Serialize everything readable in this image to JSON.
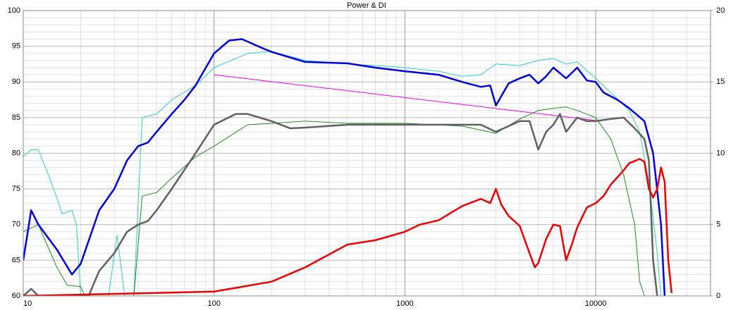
{
  "chart_data": {
    "type": "line",
    "title": "Power & DI",
    "xscale": "log",
    "xlim": [
      10,
      40000
    ],
    "xticks": [
      10,
      100,
      1000,
      10000
    ],
    "ylim": [
      60,
      100
    ],
    "yticks": [
      60,
      65,
      70,
      75,
      80,
      85,
      90,
      95,
      100
    ],
    "y2lim": [
      0,
      20
    ],
    "y2ticks": [
      0,
      5,
      10,
      15,
      20
    ],
    "grid": true,
    "series": [
      {
        "color": "#33cccc",
        "width": 1,
        "x": [
          10,
          11,
          12,
          14,
          16,
          18,
          19,
          20,
          28,
          31,
          34,
          38,
          42,
          50,
          60,
          80,
          100,
          150,
          200,
          300,
          500,
          700,
          1000,
          1500,
          2000,
          2500,
          3000,
          4000,
          5000,
          6000,
          7000,
          8000,
          10000,
          12000,
          15000,
          17000,
          19000,
          21000,
          22000
        ],
        "values": [
          79.5,
          80.5,
          80.5,
          76,
          71.5,
          72,
          70,
          60,
          60,
          68.5,
          60,
          60,
          85,
          85.5,
          87.5,
          89.5,
          92,
          94,
          94.3,
          93,
          92.5,
          92.3,
          92,
          91.5,
          90.8,
          91,
          92.5,
          92.3,
          93,
          93.3,
          92.5,
          92.8,
          90.5,
          88.5,
          86,
          83,
          76,
          66,
          60
        ]
      },
      {
        "color": "#228b22",
        "width": 1,
        "x": [
          10,
          12,
          15,
          17,
          20,
          21,
          38,
          42,
          50,
          60,
          80,
          100,
          150,
          200,
          300,
          500,
          1000,
          2000,
          3000,
          4000,
          5000,
          6000,
          7000,
          8000,
          10000,
          12000,
          14000,
          16000,
          17000,
          18000
        ],
        "values": [
          69,
          70,
          64,
          61.5,
          61.3,
          60,
          60,
          74,
          74.5,
          76.5,
          79.5,
          81,
          84,
          84.2,
          84.5,
          84.2,
          84.2,
          83.8,
          82.8,
          84.8,
          86,
          86.3,
          86.5,
          86,
          85,
          82,
          77,
          70,
          62,
          60
        ]
      },
      {
        "color": "#ee00ee",
        "width": 1,
        "x": [
          100,
          10000
        ],
        "values": [
          91,
          84.6
        ]
      },
      {
        "color": "#606060",
        "width": 2.5,
        "x": [
          10,
          11,
          12,
          22,
          25,
          30,
          35,
          40,
          45,
          50,
          60,
          80,
          100,
          130,
          150,
          200,
          250,
          300,
          500,
          700,
          1000,
          2000,
          2500,
          3000,
          4000,
          4500,
          5000,
          5500,
          6000,
          6500,
          7000,
          8000,
          9000,
          10000,
          12000,
          14000,
          16000,
          18000,
          19000,
          20000,
          21000
        ],
        "values": [
          60,
          61,
          60,
          60,
          63.5,
          66,
          69,
          70,
          70.5,
          72,
          75,
          80,
          84,
          85.5,
          85.5,
          84.5,
          83.5,
          83.6,
          84,
          84,
          84,
          84,
          84,
          83,
          84.5,
          84.5,
          80.5,
          83,
          84,
          85.5,
          83,
          85,
          84.5,
          84.5,
          84.8,
          85,
          83.5,
          82,
          79,
          65,
          60
        ]
      },
      {
        "color": "#0000dd",
        "width": 2.5,
        "x": [
          10,
          11,
          12,
          15,
          18,
          20,
          25,
          30,
          35,
          40,
          45,
          50,
          60,
          70,
          80,
          100,
          120,
          140,
          170,
          200,
          300,
          500,
          700,
          1000,
          1500,
          2000,
          2500,
          2800,
          3000,
          3500,
          4000,
          4500,
          5000,
          5500,
          6000,
          7000,
          8000,
          9000,
          10000,
          11000,
          13000,
          15000,
          18000,
          20000,
          22000,
          23000
        ],
        "values": [
          65,
          72,
          70,
          66.5,
          63,
          64.5,
          72,
          75,
          79,
          81,
          81.5,
          83,
          85.5,
          87.5,
          89.5,
          94,
          95.8,
          96,
          95,
          94.2,
          92.8,
          92.6,
          92,
          91.5,
          91,
          90,
          89.3,
          89.5,
          86.7,
          89.8,
          90.5,
          91,
          89.8,
          90.8,
          92,
          90.5,
          92,
          90.2,
          90,
          88.5,
          87.5,
          86.3,
          84.5,
          80,
          70,
          60
        ]
      },
      {
        "color": "#ee0000",
        "width": 2.5,
        "axis": "y2",
        "x": [
          10,
          100,
          200,
          300,
          500,
          700,
          1000,
          1200,
          1500,
          2000,
          2500,
          2800,
          3000,
          3200,
          3500,
          4000,
          4500,
          4800,
          5000,
          5500,
          6000,
          6500,
          7000,
          7500,
          8000,
          9000,
          10000,
          11000,
          12000,
          14000,
          15000,
          17000,
          18000,
          19000,
          20000,
          21000,
          22000,
          23000,
          24000,
          25000
        ],
        "values": [
          0,
          0.3,
          1,
          2,
          3.6,
          3.9,
          4.5,
          5,
          5.3,
          6.3,
          6.8,
          6.5,
          7.5,
          6.4,
          5.6,
          4.9,
          3,
          2,
          2.3,
          4,
          5,
          4.9,
          2.5,
          3.6,
          4.8,
          6.2,
          6.5,
          7,
          7.8,
          8.8,
          9.3,
          9.6,
          9.4,
          7.5,
          6.9,
          7.5,
          9,
          8,
          2.5,
          0.2
        ]
      }
    ]
  }
}
